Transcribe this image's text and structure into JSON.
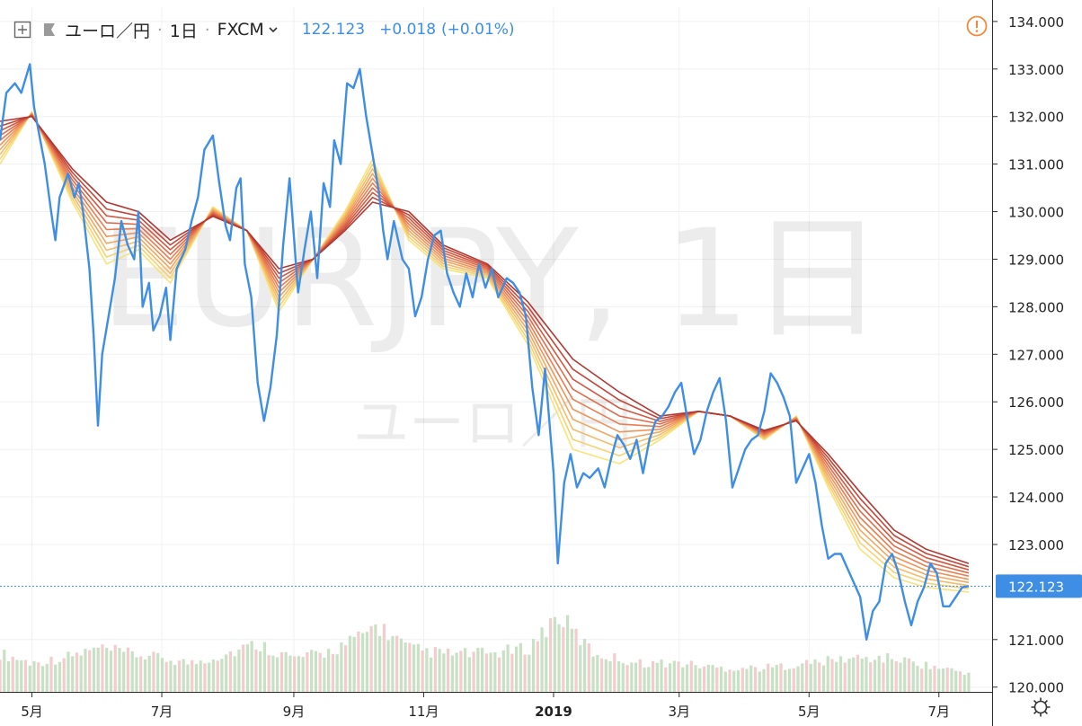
{
  "header": {
    "symbol": "ユーロ／円",
    "interval": "1日",
    "exchange": "FXCM",
    "last_price": "122.123",
    "change": "+0.018",
    "change_pct": "(+0.01%)",
    "alert_icon": "warning-circle-icon",
    "add_icon": "plus-box-icon",
    "flag_icon": "flag-icon",
    "dropdown_icon": "chevron-down-icon"
  },
  "watermark": {
    "big": "EURJPY, 1日",
    "small": "ユーロ／円"
  },
  "footer": {
    "settings_icon": "gear-icon"
  },
  "colors": {
    "price_line": "#3d8ee4",
    "price_text": "#3a8ee6",
    "last_label_bg": "#3d8ee4",
    "ribbon": [
      "#f8e27a",
      "#f7d070",
      "#f5bb68",
      "#f2a760",
      "#ee9359",
      "#e87e51",
      "#e06b49",
      "#d35840",
      "#c44638",
      "#b03830"
    ],
    "volume_up": "#c8e0c4",
    "volume_down": "#f1cdcd"
  },
  "chart_data": {
    "type": "line",
    "title": "EURJPY, 1日",
    "y_axis": {
      "position": "right",
      "ylim": [
        119.9,
        134.3
      ],
      "ticks": [
        "134.000",
        "133.000",
        "132.000",
        "131.000",
        "130.000",
        "129.000",
        "128.000",
        "127.000",
        "126.000",
        "125.000",
        "124.000",
        "123.000",
        "121.000",
        "120.000"
      ],
      "last_value_label": "122.123"
    },
    "x_axis": {
      "range": [
        "2018-04-16",
        "2019-07-26"
      ],
      "ticks": [
        {
          "label": "5月",
          "date": "2018-05-01",
          "bold": false
        },
        {
          "label": "7月",
          "date": "2018-07-01",
          "bold": false
        },
        {
          "label": "9月",
          "date": "2018-09-01",
          "bold": false
        },
        {
          "label": "11月",
          "date": "2018-11-01",
          "bold": false
        },
        {
          "label": "2019",
          "date": "2019-01-01",
          "bold": true
        },
        {
          "label": "3月",
          "date": "2019-03-01",
          "bold": false
        },
        {
          "label": "5月",
          "date": "2019-05-01",
          "bold": false
        },
        {
          "label": "7月",
          "date": "2019-07-01",
          "bold": false
        }
      ]
    },
    "grid": true,
    "last_value_line": 122.123,
    "price_series": {
      "name": "EURJPY",
      "points": [
        [
          "2018-04-16",
          131.5
        ],
        [
          "2018-04-19",
          132.5
        ],
        [
          "2018-04-23",
          132.7
        ],
        [
          "2018-04-26",
          132.5
        ],
        [
          "2018-04-30",
          133.1
        ],
        [
          "2018-05-02",
          132.2
        ],
        [
          "2018-05-07",
          131.0
        ],
        [
          "2018-05-10",
          130.0
        ],
        [
          "2018-05-12",
          129.4
        ],
        [
          "2018-05-14",
          130.3
        ],
        [
          "2018-05-18",
          130.8
        ],
        [
          "2018-05-21",
          130.3
        ],
        [
          "2018-05-23",
          130.6
        ],
        [
          "2018-05-25",
          130.0
        ],
        [
          "2018-05-28",
          128.8
        ],
        [
          "2018-05-30",
          127.4
        ],
        [
          "2018-06-01",
          125.5
        ],
        [
          "2018-06-03",
          127.0
        ],
        [
          "2018-06-06",
          127.8
        ],
        [
          "2018-06-09",
          128.6
        ],
        [
          "2018-06-12",
          129.8
        ],
        [
          "2018-06-15",
          129.3
        ],
        [
          "2018-06-18",
          129.0
        ],
        [
          "2018-06-20",
          130.0
        ],
        [
          "2018-06-22",
          128.0
        ],
        [
          "2018-06-25",
          128.5
        ],
        [
          "2018-06-27",
          127.5
        ],
        [
          "2018-06-30",
          127.8
        ],
        [
          "2018-07-03",
          128.4
        ],
        [
          "2018-07-05",
          127.3
        ],
        [
          "2018-07-08",
          128.8
        ],
        [
          "2018-07-12",
          129.2
        ],
        [
          "2018-07-15",
          129.8
        ],
        [
          "2018-07-18",
          130.3
        ],
        [
          "2018-07-21",
          131.3
        ],
        [
          "2018-07-25",
          131.6
        ],
        [
          "2018-07-28",
          130.6
        ],
        [
          "2018-07-31",
          129.7
        ],
        [
          "2018-08-02",
          129.4
        ],
        [
          "2018-08-05",
          130.5
        ],
        [
          "2018-08-07",
          130.7
        ],
        [
          "2018-08-09",
          128.9
        ],
        [
          "2018-08-12",
          128.2
        ],
        [
          "2018-08-15",
          126.4
        ],
        [
          "2018-08-18",
          125.6
        ],
        [
          "2018-08-21",
          126.3
        ],
        [
          "2018-08-24",
          127.4
        ],
        [
          "2018-08-27",
          129.3
        ],
        [
          "2018-08-30",
          130.7
        ],
        [
          "2018-09-03",
          128.3
        ],
        [
          "2018-09-06",
          129.2
        ],
        [
          "2018-09-09",
          130.0
        ],
        [
          "2018-09-12",
          128.6
        ],
        [
          "2018-09-15",
          130.6
        ],
        [
          "2018-09-18",
          130.1
        ],
        [
          "2018-09-20",
          131.5
        ],
        [
          "2018-09-23",
          131.0
        ],
        [
          "2018-09-26",
          132.7
        ],
        [
          "2018-09-29",
          132.6
        ],
        [
          "2018-10-02",
          133.0
        ],
        [
          "2018-10-05",
          132.0
        ],
        [
          "2018-10-08",
          131.2
        ],
        [
          "2018-10-11",
          130.4
        ],
        [
          "2018-10-13",
          129.6
        ],
        [
          "2018-10-15",
          129.0
        ],
        [
          "2018-10-18",
          129.8
        ],
        [
          "2018-10-22",
          129.0
        ],
        [
          "2018-10-25",
          128.8
        ],
        [
          "2018-10-28",
          127.8
        ],
        [
          "2018-10-31",
          128.2
        ],
        [
          "2018-11-03",
          129.0
        ],
        [
          "2018-11-06",
          129.5
        ],
        [
          "2018-11-09",
          129.6
        ],
        [
          "2018-11-12",
          128.7
        ],
        [
          "2018-11-15",
          128.3
        ],
        [
          "2018-11-18",
          128.0
        ],
        [
          "2018-11-21",
          128.7
        ],
        [
          "2018-11-24",
          128.2
        ],
        [
          "2018-11-27",
          128.9
        ],
        [
          "2018-11-30",
          128.4
        ],
        [
          "2018-12-03",
          128.8
        ],
        [
          "2018-12-06",
          128.2
        ],
        [
          "2018-12-10",
          128.6
        ],
        [
          "2018-12-13",
          128.5
        ],
        [
          "2018-12-16",
          128.3
        ],
        [
          "2018-12-19",
          127.8
        ],
        [
          "2018-12-22",
          126.3
        ],
        [
          "2018-12-25",
          125.3
        ],
        [
          "2018-12-28",
          126.7
        ],
        [
          "2019-01-01",
          124.5
        ],
        [
          "2019-01-03",
          122.6
        ],
        [
          "2019-01-06",
          124.3
        ],
        [
          "2019-01-09",
          124.9
        ],
        [
          "2019-01-12",
          124.2
        ],
        [
          "2019-01-15",
          124.5
        ],
        [
          "2019-01-18",
          124.4
        ],
        [
          "2019-01-22",
          124.6
        ],
        [
          "2019-01-25",
          124.2
        ],
        [
          "2019-01-28",
          124.8
        ],
        [
          "2019-01-31",
          125.3
        ],
        [
          "2019-02-03",
          125.1
        ],
        [
          "2019-02-06",
          124.8
        ],
        [
          "2019-02-09",
          125.2
        ],
        [
          "2019-02-12",
          124.5
        ],
        [
          "2019-02-15",
          125.2
        ],
        [
          "2019-02-18",
          125.6
        ],
        [
          "2019-02-21",
          125.7
        ],
        [
          "2019-02-24",
          125.9
        ],
        [
          "2019-02-27",
          126.2
        ],
        [
          "2019-03-02",
          126.4
        ],
        [
          "2019-03-05",
          125.6
        ],
        [
          "2019-03-08",
          124.9
        ],
        [
          "2019-03-11",
          125.2
        ],
        [
          "2019-03-14",
          125.8
        ],
        [
          "2019-03-17",
          126.2
        ],
        [
          "2019-03-20",
          126.5
        ],
        [
          "2019-03-23",
          125.6
        ],
        [
          "2019-03-26",
          124.2
        ],
        [
          "2019-03-29",
          124.6
        ],
        [
          "2019-04-01",
          125.0
        ],
        [
          "2019-04-04",
          125.2
        ],
        [
          "2019-04-07",
          125.3
        ],
        [
          "2019-04-10",
          125.8
        ],
        [
          "2019-04-13",
          126.6
        ],
        [
          "2019-04-16",
          126.4
        ],
        [
          "2019-04-19",
          126.1
        ],
        [
          "2019-04-22",
          125.7
        ],
        [
          "2019-04-25",
          124.3
        ],
        [
          "2019-04-28",
          124.6
        ],
        [
          "2019-05-01",
          124.9
        ],
        [
          "2019-05-04",
          124.3
        ],
        [
          "2019-05-07",
          123.4
        ],
        [
          "2019-05-10",
          122.7
        ],
        [
          "2019-05-13",
          122.8
        ],
        [
          "2019-05-16",
          122.8
        ],
        [
          "2019-05-19",
          122.5
        ],
        [
          "2019-05-22",
          122.2
        ],
        [
          "2019-05-25",
          121.9
        ],
        [
          "2019-05-28",
          121.0
        ],
        [
          "2019-05-31",
          121.6
        ],
        [
          "2019-06-03",
          121.8
        ],
        [
          "2019-06-06",
          122.6
        ],
        [
          "2019-06-09",
          122.8
        ],
        [
          "2019-06-12",
          122.4
        ],
        [
          "2019-06-15",
          121.8
        ],
        [
          "2019-06-18",
          121.3
        ],
        [
          "2019-06-21",
          121.8
        ],
        [
          "2019-06-24",
          122.1
        ],
        [
          "2019-06-27",
          122.6
        ],
        [
          "2019-06-30",
          122.4
        ],
        [
          "2019-07-03",
          121.7
        ],
        [
          "2019-07-06",
          121.7
        ],
        [
          "2019-07-09",
          121.9
        ],
        [
          "2019-07-12",
          122.1
        ],
        [
          "2019-07-15",
          122.123
        ]
      ]
    },
    "ribbon": {
      "name": "moving-average ribbon",
      "count": 10,
      "top_line": [
        [
          "2018-04-16",
          131.9
        ],
        [
          "2018-05-01",
          132.0
        ],
        [
          "2018-05-20",
          130.9
        ],
        [
          "2018-06-05",
          130.2
        ],
        [
          "2018-06-20",
          130.0
        ],
        [
          "2018-07-05",
          129.4
        ],
        [
          "2018-07-25",
          129.9
        ],
        [
          "2018-08-10",
          129.6
        ],
        [
          "2018-08-25",
          128.8
        ],
        [
          "2018-09-10",
          129.0
        ],
        [
          "2018-09-25",
          129.6
        ],
        [
          "2018-10-08",
          130.2
        ],
        [
          "2018-10-25",
          130.0
        ],
        [
          "2018-11-10",
          129.3
        ],
        [
          "2018-12-01",
          128.9
        ],
        [
          "2018-12-20",
          128.1
        ],
        [
          "2019-01-10",
          126.9
        ],
        [
          "2019-02-01",
          126.2
        ],
        [
          "2019-02-20",
          125.7
        ],
        [
          "2019-03-10",
          125.8
        ],
        [
          "2019-03-25",
          125.7
        ],
        [
          "2019-04-10",
          125.4
        ],
        [
          "2019-04-25",
          125.6
        ],
        [
          "2019-05-10",
          124.9
        ],
        [
          "2019-05-25",
          124.1
        ],
        [
          "2019-06-10",
          123.3
        ],
        [
          "2019-06-25",
          122.9
        ],
        [
          "2019-07-15",
          122.6
        ]
      ],
      "bottom_line": [
        [
          "2018-04-16",
          131.0
        ],
        [
          "2018-05-01",
          132.1
        ],
        [
          "2018-05-20",
          130.2
        ],
        [
          "2018-06-05",
          128.9
        ],
        [
          "2018-06-20",
          129.2
        ],
        [
          "2018-07-05",
          128.5
        ],
        [
          "2018-07-25",
          130.1
        ],
        [
          "2018-08-10",
          129.6
        ],
        [
          "2018-08-25",
          127.9
        ],
        [
          "2018-09-10",
          129.0
        ],
        [
          "2018-09-25",
          130.0
        ],
        [
          "2018-10-08",
          131.1
        ],
        [
          "2018-10-25",
          129.4
        ],
        [
          "2018-11-10",
          128.8
        ],
        [
          "2018-12-01",
          128.6
        ],
        [
          "2018-12-20",
          127.2
        ],
        [
          "2019-01-10",
          125.0
        ],
        [
          "2019-02-01",
          124.7
        ],
        [
          "2019-02-20",
          125.2
        ],
        [
          "2019-03-10",
          125.8
        ],
        [
          "2019-03-25",
          125.7
        ],
        [
          "2019-04-10",
          125.2
        ],
        [
          "2019-04-25",
          125.7
        ],
        [
          "2019-05-10",
          124.2
        ],
        [
          "2019-05-25",
          122.9
        ],
        [
          "2019-06-10",
          122.3
        ],
        [
          "2019-06-25",
          122.1
        ],
        [
          "2019-07-15",
          122.0
        ]
      ]
    },
    "volume": {
      "name": "volume",
      "shown_as": "faint histogram along bottom",
      "points": [
        [
          "2018-04-16",
          0.8
        ],
        [
          "2018-05-01",
          0.6
        ],
        [
          "2018-05-15",
          0.7
        ],
        [
          "2018-06-01",
          0.9
        ],
        [
          "2018-06-15",
          0.8
        ],
        [
          "2018-07-01",
          0.7
        ],
        [
          "2018-07-15",
          0.6
        ],
        [
          "2018-08-01",
          0.8
        ],
        [
          "2018-08-15",
          1.0
        ],
        [
          "2018-09-01",
          0.7
        ],
        [
          "2018-09-15",
          0.8
        ],
        [
          "2018-10-01",
          1.1
        ],
        [
          "2018-10-10",
          1.4
        ],
        [
          "2018-10-25",
          0.9
        ],
        [
          "2018-11-10",
          0.8
        ],
        [
          "2018-12-01",
          0.8
        ],
        [
          "2018-12-20",
          0.9
        ],
        [
          "2019-01-03",
          1.6
        ],
        [
          "2019-01-20",
          0.8
        ],
        [
          "2019-02-10",
          0.6
        ],
        [
          "2019-03-01",
          0.6
        ],
        [
          "2019-03-20",
          0.5
        ],
        [
          "2019-04-10",
          0.5
        ],
        [
          "2019-05-01",
          0.6
        ],
        [
          "2019-05-20",
          0.7
        ],
        [
          "2019-06-10",
          0.7
        ],
        [
          "2019-07-01",
          0.5
        ],
        [
          "2019-07-15",
          0.4
        ]
      ]
    }
  }
}
